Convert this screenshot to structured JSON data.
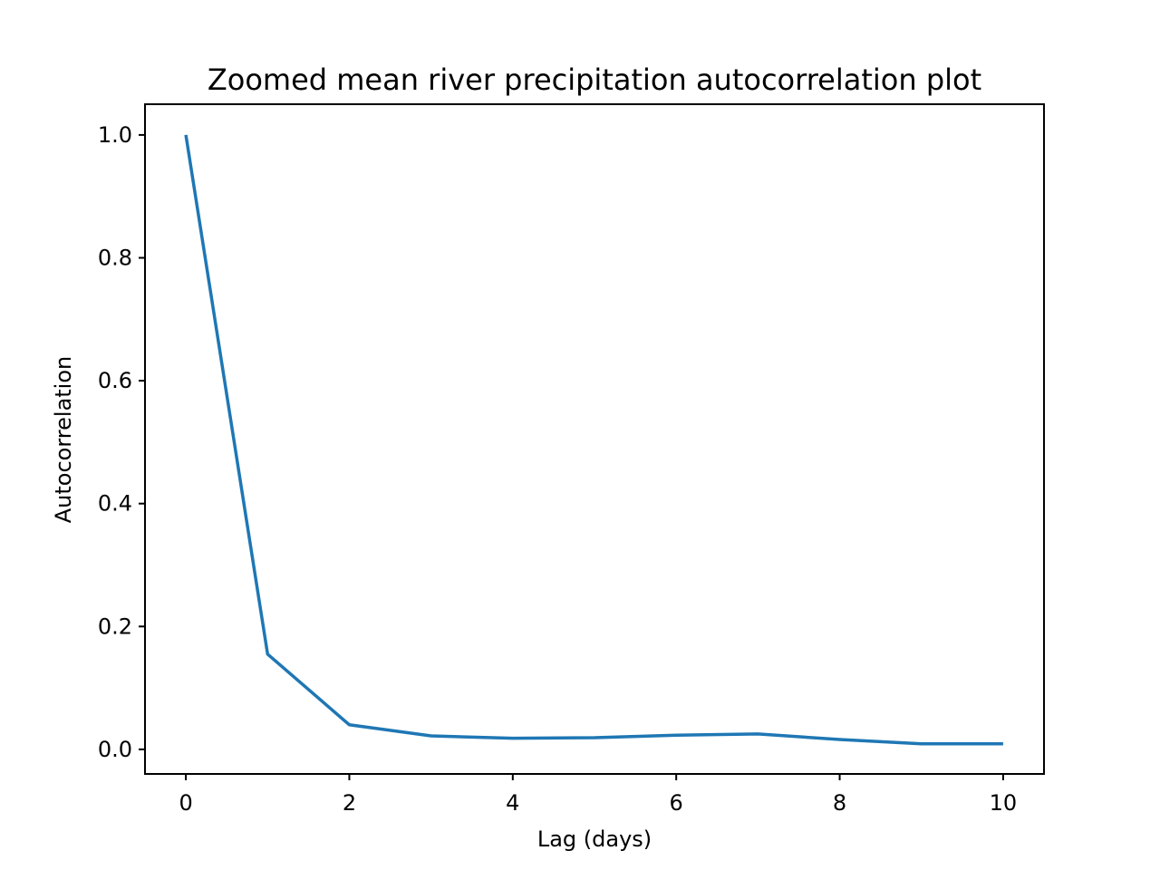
{
  "chart_data": {
    "type": "line",
    "title": "Zoomed mean river precipitation autocorrelation plot",
    "xlabel": "Lag (days)",
    "ylabel": "Autocorrelation",
    "x": [
      0,
      1,
      2,
      3,
      4,
      5,
      6,
      7,
      8,
      9,
      10
    ],
    "series": [
      {
        "values": [
          1.0,
          0.155,
          0.04,
          0.022,
          0.018,
          0.019,
          0.023,
          0.025,
          0.016,
          0.009,
          0.009
        ],
        "color": "#1f77b4"
      }
    ],
    "xlim": [
      -0.5,
      10.5
    ],
    "ylim": [
      -0.04,
      1.05
    ],
    "xticks": [
      0,
      2,
      4,
      6,
      8,
      10
    ],
    "xtick_labels": [
      "0",
      "2",
      "4",
      "6",
      "8",
      "10"
    ],
    "yticks": [
      0.0,
      0.2,
      0.4,
      0.6,
      0.8,
      1.0
    ],
    "ytick_labels": [
      "0.0",
      "0.2",
      "0.4",
      "0.6",
      "0.8",
      "1.0"
    ],
    "grid": false,
    "legend": "none"
  }
}
